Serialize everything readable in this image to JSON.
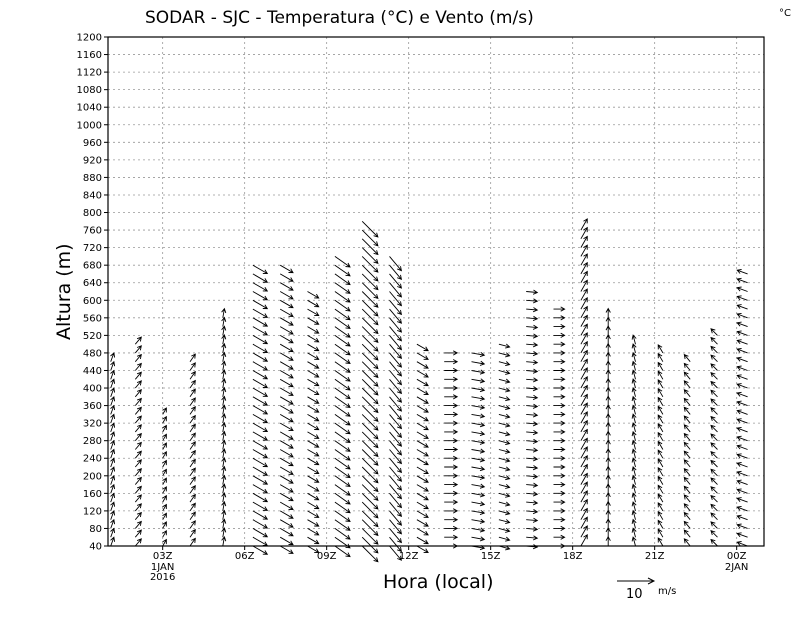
{
  "chart_data": {
    "type": "vector-field",
    "title": "SODAR - SJC - Temperatura (°C) e Vento (m/s)",
    "corner_label": "°C",
    "xlabel": "Hora (local)",
    "ylabel": "Altura (m)",
    "ylim": [
      40,
      1200
    ],
    "y_ticks": [
      40,
      80,
      120,
      160,
      200,
      240,
      280,
      320,
      360,
      400,
      440,
      480,
      520,
      560,
      600,
      640,
      680,
      720,
      760,
      800,
      840,
      880,
      920,
      960,
      1000,
      1040,
      1080,
      1120,
      1160,
      1200
    ],
    "xlim_hours": [
      0,
      24
    ],
    "x_ticks": [
      {
        "hour": 2,
        "label": "03Z",
        "sub": [
          "1JAN",
          "2016"
        ]
      },
      {
        "hour": 5,
        "label": "06Z",
        "sub": []
      },
      {
        "hour": 8,
        "label": "09Z",
        "sub": []
      },
      {
        "hour": 11,
        "label": "12Z",
        "sub": []
      },
      {
        "hour": 14,
        "label": "15Z",
        "sub": []
      },
      {
        "hour": 17,
        "label": "18Z",
        "sub": []
      },
      {
        "hour": 20,
        "label": "21Z",
        "sub": []
      },
      {
        "hour": 23,
        "label": "00Z",
        "sub": [
          "2JAN"
        ]
      }
    ],
    "height_step_m": 20,
    "reference_vector": {
      "label": "10",
      "unit": "m/s",
      "speed": 10
    },
    "profiles": [
      {
        "hour": 0.1,
        "top": 460,
        "dir": 200,
        "speed": 2.5
      },
      {
        "hour": 1.0,
        "top": 500,
        "dir": 220,
        "speed": 2.5
      },
      {
        "hour": 2.0,
        "top": 340,
        "dir": 210,
        "speed": 2.0
      },
      {
        "hour": 3.0,
        "top": 470,
        "dir": 215,
        "speed": 2.5
      },
      {
        "hour": 4.2,
        "top": 560,
        "dir": 190,
        "speed": 2.5
      },
      {
        "hour": 5.3,
        "top": 680,
        "dir": 300,
        "speed": 4.5
      },
      {
        "hour": 6.3,
        "top": 680,
        "dir": 300,
        "speed": 4.0
      },
      {
        "hour": 7.3,
        "top": 620,
        "dir": 300,
        "speed": 3.5
      },
      {
        "hour": 8.3,
        "top": 700,
        "dir": 305,
        "speed": 5.0
      },
      {
        "hour": 9.3,
        "top": 780,
        "dir": 315,
        "speed": 6.0
      },
      {
        "hour": 10.3,
        "top": 700,
        "dir": 320,
        "speed": 5.0
      },
      {
        "hour": 11.3,
        "top": 500,
        "dir": 300,
        "speed": 3.5
      },
      {
        "hour": 12.3,
        "top": 490,
        "dir": 270,
        "speed": 3.5
      },
      {
        "hour": 13.3,
        "top": 480,
        "dir": 280,
        "speed": 3.5
      },
      {
        "hour": 14.3,
        "top": 500,
        "dir": 285,
        "speed": 3.0
      },
      {
        "hour": 15.3,
        "top": 620,
        "dir": 275,
        "speed": 3.0
      },
      {
        "hour": 16.3,
        "top": 590,
        "dir": 270,
        "speed": 3.0
      },
      {
        "hour": 17.3,
        "top": 760,
        "dir": 210,
        "speed": 3.5
      },
      {
        "hour": 18.3,
        "top": 570,
        "dir": 180,
        "speed": 2.5
      },
      {
        "hour": 19.3,
        "top": 510,
        "dir": 165,
        "speed": 2.5
      },
      {
        "hour": 20.3,
        "top": 480,
        "dir": 150,
        "speed": 2.5
      },
      {
        "hour": 21.3,
        "top": 470,
        "dir": 140,
        "speed": 2.5
      },
      {
        "hour": 22.3,
        "top": 520,
        "dir": 135,
        "speed": 2.5
      },
      {
        "hour": 23.4,
        "top": 660,
        "dir": 110,
        "speed": 3.0
      }
    ]
  }
}
